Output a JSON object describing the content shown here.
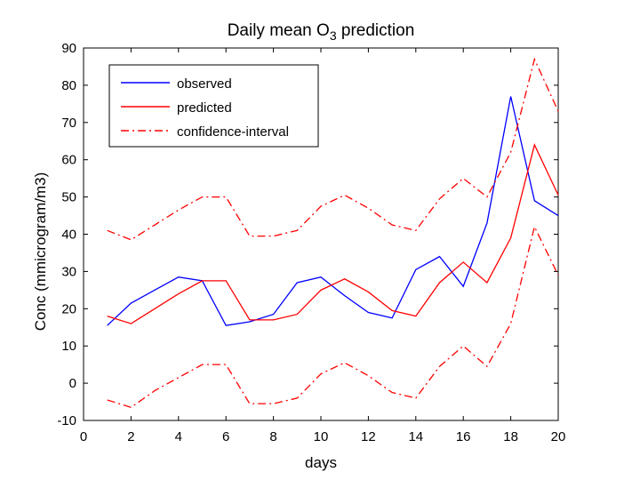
{
  "chart_data": {
    "type": "line",
    "title_main": "Daily mean O",
    "title_sub": "3",
    "title_rest": " prediction",
    "xlabel": "days",
    "ylabel": "Conc (mmicrogram/m3)",
    "xlim": [
      0,
      20
    ],
    "ylim": [
      -10,
      90
    ],
    "xticks": [
      0,
      2,
      4,
      6,
      8,
      10,
      12,
      14,
      16,
      18,
      20
    ],
    "yticks": [
      -10,
      0,
      10,
      20,
      30,
      40,
      50,
      60,
      70,
      80,
      90
    ],
    "grid": false,
    "legend_position": "top-left",
    "x": [
      1,
      2,
      3,
      4,
      5,
      6,
      7,
      8,
      9,
      10,
      11,
      12,
      13,
      14,
      15,
      16,
      17,
      18,
      19,
      20
    ],
    "series": [
      {
        "name": "observed",
        "color": "#0000ff",
        "style": "solid",
        "values": [
          15.5,
          21.5,
          25,
          28.5,
          27.5,
          15.5,
          16.5,
          18.5,
          27,
          28.5,
          23.5,
          19,
          17.5,
          30.5,
          34,
          26,
          43,
          77,
          49,
          45
        ]
      },
      {
        "name": "predicted",
        "color": "#ff0000",
        "style": "solid",
        "values": [
          18,
          16,
          20,
          24,
          27.5,
          27.5,
          17,
          17,
          18.5,
          25,
          28,
          24.5,
          19.5,
          18,
          27,
          32.5,
          27,
          39,
          64,
          50.5
        ]
      },
      {
        "name": "confidence-interval",
        "color": "#ff0000",
        "style": "dashdot",
        "upper": [
          41,
          38.5,
          42.5,
          46.5,
          50,
          50,
          39.5,
          39.5,
          41,
          47.5,
          50.5,
          47,
          42.5,
          41,
          49.5,
          55,
          50,
          62,
          87,
          73
        ],
        "lower": [
          -4.5,
          -6.5,
          -2,
          1.5,
          5,
          5,
          -5.5,
          -5.5,
          -4,
          2.5,
          5.5,
          2,
          -2.5,
          -4,
          4.5,
          10,
          4.5,
          16,
          42,
          29
        ]
      }
    ]
  }
}
